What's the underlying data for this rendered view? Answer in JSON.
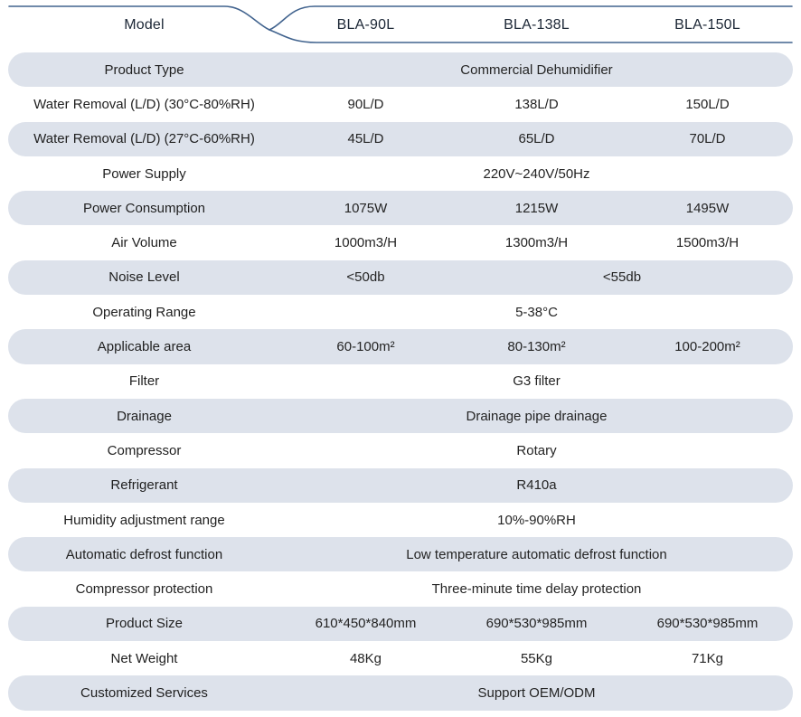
{
  "header": {
    "model_label": "Model",
    "models": [
      "BLA-90L",
      "BLA-138L",
      "BLA-150L"
    ]
  },
  "table": {
    "rows": [
      {
        "label": "Product Type",
        "values": [
          "Commercial Dehumidifier"
        ]
      },
      {
        "label": "Water Removal (L/D) (30°C-80%RH)",
        "values": [
          "90L/D",
          "138L/D",
          "150L/D"
        ]
      },
      {
        "label": "Water Removal (L/D) (27°C-60%RH)",
        "values": [
          "45L/D",
          "65L/D",
          "70L/D"
        ]
      },
      {
        "label": "Power Supply",
        "values": [
          "220V~240V/50Hz"
        ]
      },
      {
        "label": "Power Consumption",
        "values": [
          "1075W",
          "1215W",
          "1495W"
        ]
      },
      {
        "label": "Air Volume",
        "values": [
          "1000m3/H",
          "1300m3/H",
          "1500m3/H"
        ]
      },
      {
        "label": "Noise Level",
        "values": [
          "<50db",
          "<55db"
        ]
      },
      {
        "label": "Operating Range",
        "values": [
          "5-38°C"
        ]
      },
      {
        "label": "Applicable area",
        "values": [
          "60-100m²",
          "80-130m²",
          "100-200m²"
        ]
      },
      {
        "label": "Filter",
        "values": [
          "G3 filter"
        ]
      },
      {
        "label": "Drainage",
        "values": [
          "Drainage pipe drainage"
        ]
      },
      {
        "label": "Compressor",
        "values": [
          "Rotary"
        ]
      },
      {
        "label": "Refrigerant",
        "values": [
          "R410a"
        ]
      },
      {
        "label": "Humidity adjustment range",
        "values": [
          "10%-90%RH"
        ]
      },
      {
        "label": "Automatic defrost function",
        "values": [
          "Low temperature automatic defrost function"
        ]
      },
      {
        "label": "Compressor protection",
        "values": [
          "Three-minute time delay protection"
        ]
      },
      {
        "label": "Product Size",
        "values": [
          "610*450*840mm",
          "690*530*985mm",
          "690*530*985mm"
        ]
      },
      {
        "label": "Net Weight",
        "values": [
          "48Kg",
          "55Kg",
          "71Kg"
        ]
      },
      {
        "label": "Customized Services",
        "values": [
          "Support OEM/ODM"
        ]
      }
    ]
  },
  "colors": {
    "accent_line": "#41638e",
    "row_shade": "#dde2eb",
    "text": "#242424"
  }
}
